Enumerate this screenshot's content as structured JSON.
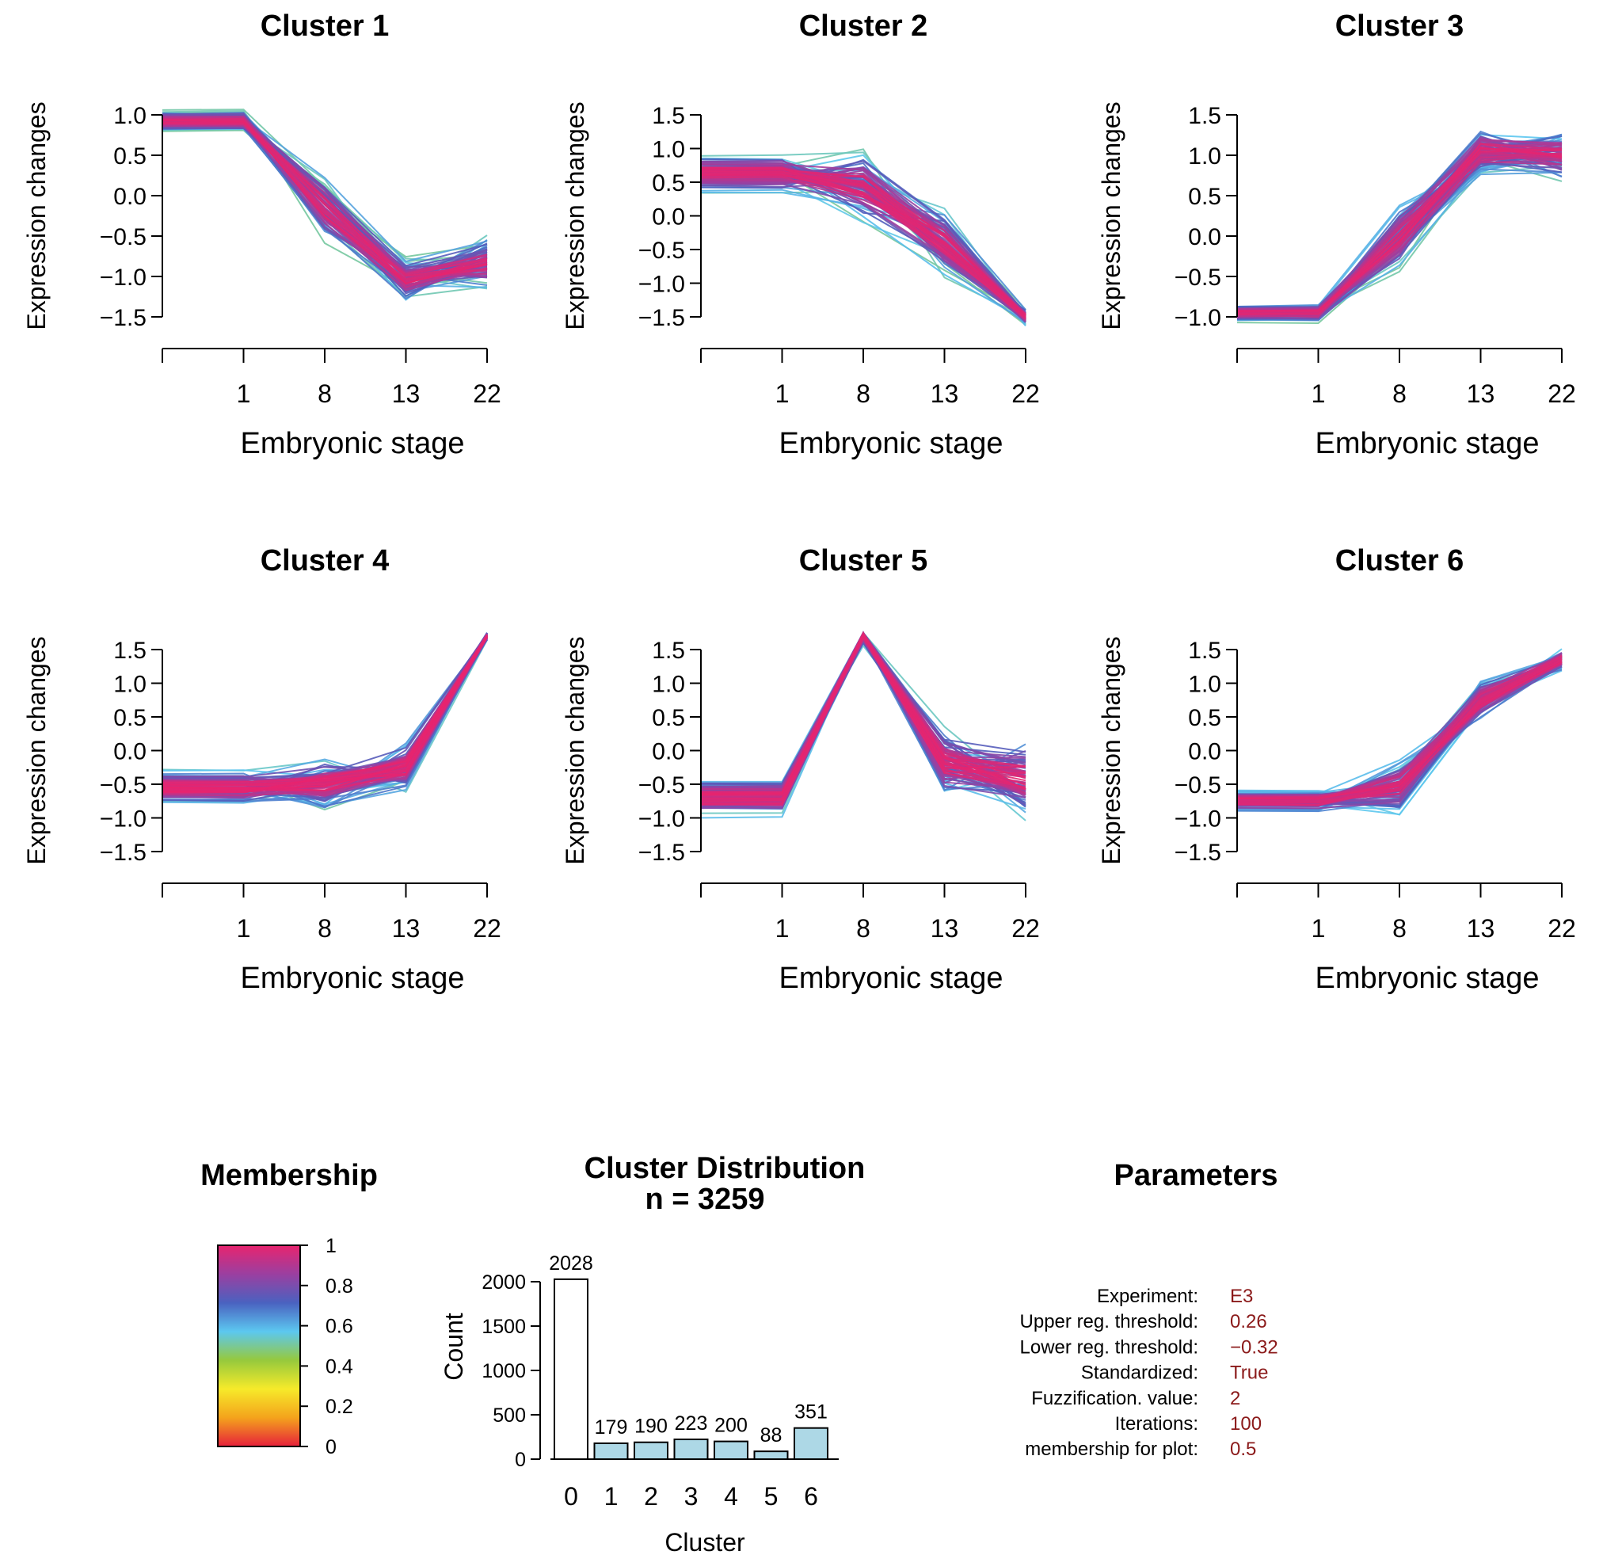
{
  "chart_data": [
    {
      "type": "line",
      "title": "Cluster 1",
      "xlabel": "Embryonic stage",
      "ylabel": "Expression changes",
      "x_ticks": [
        "",
        "1",
        "8",
        "13",
        "22"
      ],
      "yticks": [
        -1.5,
        -1.0,
        -0.5,
        0.0,
        0.5,
        1.0
      ],
      "ylim": [
        -1.5,
        1.0
      ],
      "core_profile": [
        0.92,
        0.92,
        -0.15,
        -1.05,
        -0.85
      ],
      "spread": [
        0.15,
        0.15,
        0.45,
        0.3,
        0.4
      ]
    },
    {
      "type": "line",
      "title": "Cluster 2",
      "xlabel": "Embryonic stage",
      "ylabel": "Expression changes",
      "x_ticks": [
        "",
        "1",
        "8",
        "13",
        "22"
      ],
      "yticks": [
        -1.5,
        -1.0,
        -0.5,
        0.0,
        0.5,
        1.0,
        1.5
      ],
      "ylim": [
        -1.5,
        1.5
      ],
      "core_profile": [
        0.65,
        0.65,
        0.45,
        -0.4,
        -1.5
      ],
      "spread": [
        0.35,
        0.25,
        0.6,
        0.55,
        0.15
      ]
    },
    {
      "type": "line",
      "title": "Cluster 3",
      "xlabel": "Embryonic stage",
      "ylabel": "Expression changes",
      "x_ticks": [
        "",
        "1",
        "8",
        "13",
        "22"
      ],
      "yticks": [
        -1.0,
        -0.5,
        0.0,
        0.5,
        1.0,
        1.5
      ],
      "ylim": [
        -1.0,
        1.5
      ],
      "core_profile": [
        -0.95,
        -0.95,
        0.0,
        1.05,
        1.0
      ],
      "spread": [
        0.12,
        0.12,
        0.45,
        0.35,
        0.35
      ]
    },
    {
      "type": "line",
      "title": "Cluster 4",
      "xlabel": "Embryonic stage",
      "ylabel": "Expression changes",
      "x_ticks": [
        "",
        "1",
        "8",
        "13",
        "22"
      ],
      "yticks": [
        -1.5,
        -1.0,
        -0.5,
        0.0,
        0.5,
        1.0,
        1.5
      ],
      "ylim": [
        -1.5,
        1.5
      ],
      "core_profile": [
        -0.55,
        -0.55,
        -0.5,
        -0.25,
        1.7
      ],
      "spread": [
        0.3,
        0.25,
        0.45,
        0.45,
        0.08
      ]
    },
    {
      "type": "line",
      "title": "Cluster 5",
      "xlabel": "Embryonic stage",
      "ylabel": "Expression changes",
      "x_ticks": [
        "",
        "1",
        "8",
        "13",
        "22"
      ],
      "yticks": [
        -1.5,
        -1.0,
        -0.5,
        0.0,
        0.5,
        1.0,
        1.5
      ],
      "ylim": [
        -1.5,
        1.5
      ],
      "core_profile": [
        -0.7,
        -0.7,
        1.7,
        -0.2,
        -0.4
      ],
      "spread": [
        0.35,
        0.3,
        0.15,
        0.6,
        0.7
      ]
    },
    {
      "type": "line",
      "title": "Cluster 6",
      "xlabel": "Embryonic stage",
      "ylabel": "Expression changes",
      "x_ticks": [
        "",
        "1",
        "8",
        "13",
        "22"
      ],
      "yticks": [
        -1.5,
        -1.0,
        -0.5,
        0.0,
        0.5,
        1.0,
        1.5
      ],
      "ylim": [
        -1.5,
        1.5
      ],
      "core_profile": [
        -0.75,
        -0.75,
        -0.55,
        0.75,
        1.35
      ],
      "spread": [
        0.2,
        0.12,
        0.5,
        0.35,
        0.2
      ]
    },
    {
      "type": "bar",
      "title": "Cluster Distribution",
      "subtitle": "n = 3259",
      "xlabel": "Cluster",
      "ylabel": "Count",
      "categories": [
        "0",
        "1",
        "2",
        "3",
        "4",
        "5",
        "6"
      ],
      "values": [
        2028,
        179,
        190,
        223,
        200,
        88,
        351
      ],
      "data_labels": [
        "2028",
        "179",
        "190",
        "223",
        "200",
        "88",
        "351"
      ],
      "yticks": [
        0,
        500,
        1000,
        1500,
        2000
      ],
      "ylim": [
        0,
        2000
      ],
      "colors": [
        "#ffffff",
        "#add8e6",
        "#add8e6",
        "#add8e6",
        "#add8e6",
        "#add8e6",
        "#add8e6"
      ]
    }
  ],
  "membership": {
    "title": "Membership",
    "ticks": [
      "0",
      "0.2",
      "0.4",
      "0.6",
      "0.8",
      "1"
    ],
    "gradient_colors": [
      "#e6203b",
      "#f4a31c",
      "#f6ea2a",
      "#96c93d",
      "#5cc8f0",
      "#4a62c0",
      "#9b3fa0",
      "#e8246e"
    ]
  },
  "parameters": {
    "title": "Parameters",
    "rows": [
      {
        "label": "Experiment:",
        "value": "E3"
      },
      {
        "label": "Upper reg. threshold:",
        "value": "0.26"
      },
      {
        "label": "Lower reg. threshold:",
        "value": "−0.32"
      },
      {
        "label": "Standardized:",
        "value": "True"
      },
      {
        "label": "Fuzzification. value:",
        "value": "2"
      },
      {
        "label": "Iterations:",
        "value": "100"
      },
      {
        "label": "membership for plot:",
        "value": "0.5"
      }
    ],
    "value_color": "#8b1a1a"
  }
}
